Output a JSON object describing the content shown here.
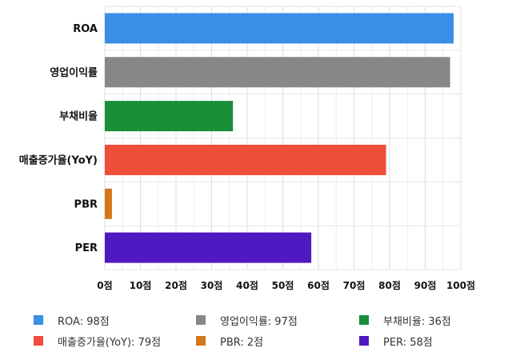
{
  "chart_data": {
    "type": "bar",
    "orientation": "horizontal",
    "categories": [
      "ROA",
      "영업이익률",
      "부채비율",
      "매출증가율(YoY)",
      "PBR",
      "PER"
    ],
    "values": [
      98,
      97,
      36,
      79,
      2,
      58
    ],
    "colors": [
      "#3a8ee6",
      "#878787",
      "#1a8f3a",
      "#ee4e3a",
      "#d4761a",
      "#4f18c2"
    ],
    "xlim": [
      0,
      100
    ],
    "x_ticks": [
      0,
      10,
      20,
      30,
      40,
      50,
      60,
      70,
      80,
      90,
      100
    ],
    "tick_suffix": "점",
    "grid": true,
    "legend_position": "bottom",
    "legend": [
      "ROA: 98점",
      "영업이익률: 97점",
      "부채비율: 36점",
      "매출증가율(YoY): 79점",
      "PBR: 2점",
      "PER: 58점"
    ]
  }
}
